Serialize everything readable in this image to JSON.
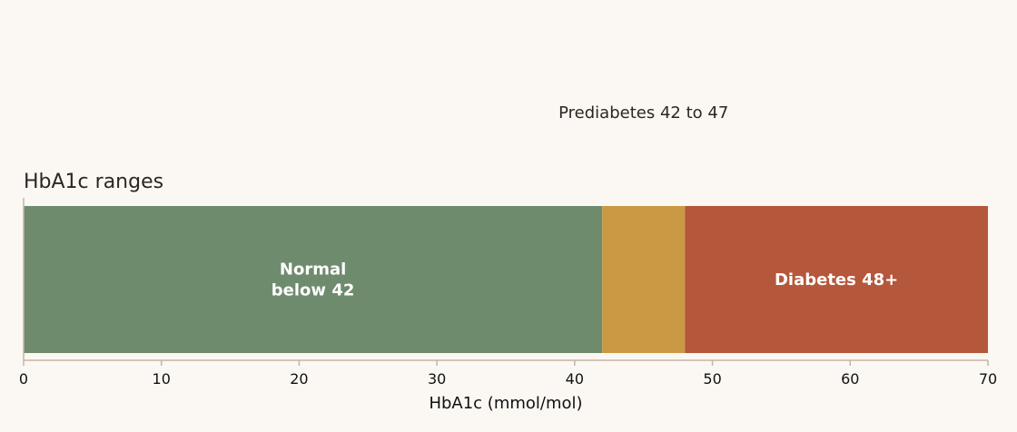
{
  "chart_data": {
    "type": "bar",
    "orientation": "horizontal",
    "stacked": true,
    "title": "HbA1c ranges",
    "xlabel": "HbA1c (mmol/mol)",
    "ylabel": "",
    "xlim": [
      0,
      70
    ],
    "x_ticks": [
      0,
      10,
      20,
      30,
      40,
      50,
      60,
      70
    ],
    "grid": false,
    "segments": [
      {
        "label_lines": [
          "Normal",
          "below 42"
        ],
        "start": 0,
        "end": 42,
        "color": "#6f8b6e",
        "label_position": "inside"
      },
      {
        "label_lines": [
          "Prediabetes 42 to 47"
        ],
        "start": 42,
        "end": 48,
        "color": "#c99a43",
        "label_position": "above"
      },
      {
        "label_lines": [
          "Diabetes 48+"
        ],
        "start": 48,
        "end": 70,
        "color": "#b5573b",
        "label_position": "inside"
      }
    ],
    "colors": {
      "background": "#fbf8f3",
      "axis": "#c4b4a6",
      "text": "#2a2622",
      "inside_label": "#ffffff"
    }
  }
}
